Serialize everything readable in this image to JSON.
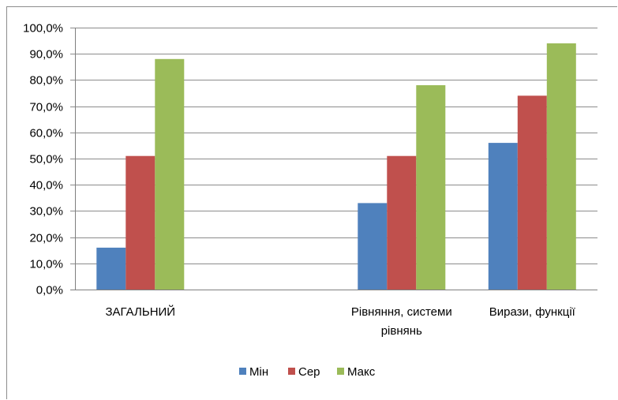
{
  "chart_data": {
    "type": "bar",
    "title": "",
    "xlabel": "",
    "ylabel": "",
    "ylim": [
      0,
      100
    ],
    "ytick_step": 10,
    "ytick_labels": [
      "0,0%",
      "10,0%",
      "20,0%",
      "30,0%",
      "40,0%",
      "50,0%",
      "60,0%",
      "70,0%",
      "80,0%",
      "90,0%",
      "100,0%"
    ],
    "grid": true,
    "legend_position": "bottom",
    "categories": [
      [
        "ЗАГАЛЬНИЙ"
      ],
      [],
      [
        "Рівняння, системи",
        "рівнянь"
      ],
      [
        "Вирази, функції"
      ]
    ],
    "series": [
      {
        "name": "Мін",
        "color": "#4F81BD",
        "values": [
          16,
          null,
          33,
          56
        ]
      },
      {
        "name": "Сер",
        "color": "#C0504D",
        "values": [
          51,
          null,
          51,
          74
        ]
      },
      {
        "name": "Макс",
        "color": "#9BBB59",
        "values": [
          88,
          null,
          78,
          94
        ]
      }
    ]
  }
}
